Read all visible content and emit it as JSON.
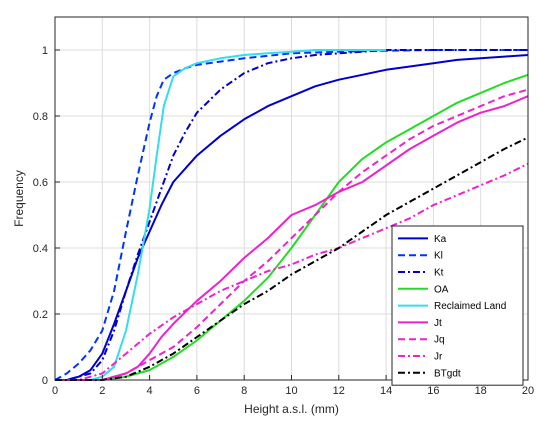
{
  "chart_data": {
    "type": "line",
    "title": "",
    "xlabel": "Height a.s.l. (mm)",
    "ylabel": "Frequency",
    "xlim": [
      0,
      20
    ],
    "ylim": [
      0,
      1.1
    ],
    "xticks": [
      "0",
      "2",
      "4",
      "6",
      "8",
      "10",
      "12",
      "14",
      "16",
      "18",
      "20"
    ],
    "yticks": [
      "0",
      "0.2",
      "0.4",
      "0.6",
      "0.8",
      "1"
    ],
    "grid": true,
    "legend_position": "bottom-right",
    "series": [
      {
        "name": "Ka",
        "color": "#0000cc",
        "dash": "solid",
        "x": [
          0,
          0.5,
          1,
          1.5,
          2,
          2.5,
          3,
          3.5,
          4,
          4.5,
          5,
          6,
          7,
          8,
          9,
          10,
          11,
          12,
          13,
          14,
          15,
          16,
          17,
          18,
          19,
          20
        ],
        "y": [
          0,
          0,
          0.01,
          0.03,
          0.08,
          0.17,
          0.27,
          0.37,
          0.45,
          0.53,
          0.6,
          0.68,
          0.74,
          0.79,
          0.83,
          0.86,
          0.89,
          0.91,
          0.925,
          0.94,
          0.95,
          0.96,
          0.97,
          0.975,
          0.98,
          0.985
        ]
      },
      {
        "name": "Kl",
        "color": "#0033ff",
        "dash": "dashed",
        "x": [
          0,
          0.5,
          1,
          1.5,
          2,
          2.5,
          3,
          3.5,
          4,
          4.3,
          4.6,
          5,
          5.5,
          6,
          7,
          8,
          10,
          12,
          14,
          16,
          18,
          20
        ],
        "y": [
          0,
          0.02,
          0.05,
          0.09,
          0.15,
          0.27,
          0.45,
          0.62,
          0.78,
          0.86,
          0.91,
          0.93,
          0.945,
          0.955,
          0.965,
          0.975,
          0.99,
          0.995,
          0.998,
          1,
          1,
          1
        ]
      },
      {
        "name": "Kt",
        "color": "#0000cc",
        "dash": "dashdot",
        "x": [
          0,
          0.5,
          1,
          1.5,
          2,
          2.5,
          3,
          3.5,
          4,
          4.5,
          5,
          5.5,
          6,
          7,
          8,
          9,
          10,
          11,
          12,
          13,
          14,
          16,
          18,
          20
        ],
        "y": [
          0,
          0,
          0.01,
          0.02,
          0.06,
          0.15,
          0.27,
          0.38,
          0.48,
          0.58,
          0.68,
          0.75,
          0.81,
          0.88,
          0.93,
          0.96,
          0.975,
          0.985,
          0.99,
          0.995,
          1,
          1,
          1,
          1
        ]
      },
      {
        "name": "OA",
        "color": "#22dd22",
        "dash": "solid",
        "x": [
          0,
          1,
          2,
          3,
          4,
          5,
          6,
          7,
          8,
          9,
          10,
          11,
          12,
          13,
          14,
          15,
          16,
          17,
          18,
          19,
          20
        ],
        "y": [
          0,
          0,
          0,
          0.01,
          0.03,
          0.07,
          0.12,
          0.18,
          0.24,
          0.31,
          0.4,
          0.5,
          0.6,
          0.67,
          0.72,
          0.76,
          0.8,
          0.84,
          0.87,
          0.9,
          0.925
        ]
      },
      {
        "name": "Reclaimed Land",
        "color": "#33ddee",
        "dash": "solid",
        "x": [
          0,
          0.5,
          1,
          1.5,
          2,
          2.5,
          3,
          3.5,
          4,
          4.3,
          4.6,
          5,
          5.5,
          6,
          7,
          8,
          9,
          10,
          11,
          12,
          13,
          14
        ],
        "y": [
          0,
          0,
          0,
          0,
          0.01,
          0.04,
          0.15,
          0.32,
          0.52,
          0.68,
          0.83,
          0.92,
          0.945,
          0.96,
          0.975,
          0.985,
          0.99,
          0.995,
          1,
          1,
          1,
          1
        ]
      },
      {
        "name": "Jt",
        "color": "#ee22cc",
        "dash": "solid",
        "x": [
          0,
          1,
          2,
          3,
          3.5,
          4,
          4.5,
          5,
          6,
          7,
          8,
          9,
          10,
          11,
          12,
          13,
          14,
          15,
          16,
          17,
          18,
          19,
          20
        ],
        "y": [
          0,
          0,
          0,
          0.02,
          0.04,
          0.08,
          0.13,
          0.17,
          0.24,
          0.3,
          0.37,
          0.43,
          0.5,
          0.53,
          0.57,
          0.6,
          0.65,
          0.7,
          0.74,
          0.78,
          0.81,
          0.83,
          0.86
        ]
      },
      {
        "name": "Jq",
        "color": "#ee22cc",
        "dash": "dashed",
        "x": [
          0,
          1,
          2,
          3,
          4,
          5,
          6,
          7,
          8,
          9,
          10,
          11,
          12,
          13,
          14,
          15,
          16,
          17,
          18,
          19,
          20
        ],
        "y": [
          0,
          0,
          0,
          0.02,
          0.06,
          0.1,
          0.16,
          0.23,
          0.3,
          0.36,
          0.43,
          0.5,
          0.57,
          0.63,
          0.68,
          0.73,
          0.77,
          0.8,
          0.83,
          0.86,
          0.88
        ]
      },
      {
        "name": "Jr",
        "color": "#ee22cc",
        "dash": "dashdot",
        "x": [
          0,
          1,
          2,
          3,
          4,
          5,
          6,
          7,
          8,
          9,
          10,
          11,
          12,
          13,
          14,
          15,
          16,
          17,
          18,
          19,
          20
        ],
        "y": [
          0,
          0,
          0.02,
          0.08,
          0.14,
          0.19,
          0.23,
          0.27,
          0.3,
          0.33,
          0.35,
          0.38,
          0.4,
          0.43,
          0.46,
          0.49,
          0.53,
          0.56,
          0.59,
          0.62,
          0.655
        ]
      },
      {
        "name": "BTgdt",
        "color": "#000000",
        "dash": "dashdot",
        "x": [
          0,
          1,
          2,
          3,
          4,
          5,
          6,
          7,
          8,
          9,
          10,
          11,
          12,
          13,
          14,
          15,
          16,
          17,
          18,
          19,
          20
        ],
        "y": [
          0,
          0,
          0,
          0.01,
          0.04,
          0.08,
          0.13,
          0.18,
          0.23,
          0.27,
          0.32,
          0.36,
          0.4,
          0.45,
          0.5,
          0.54,
          0.58,
          0.62,
          0.66,
          0.7,
          0.735
        ]
      }
    ]
  }
}
